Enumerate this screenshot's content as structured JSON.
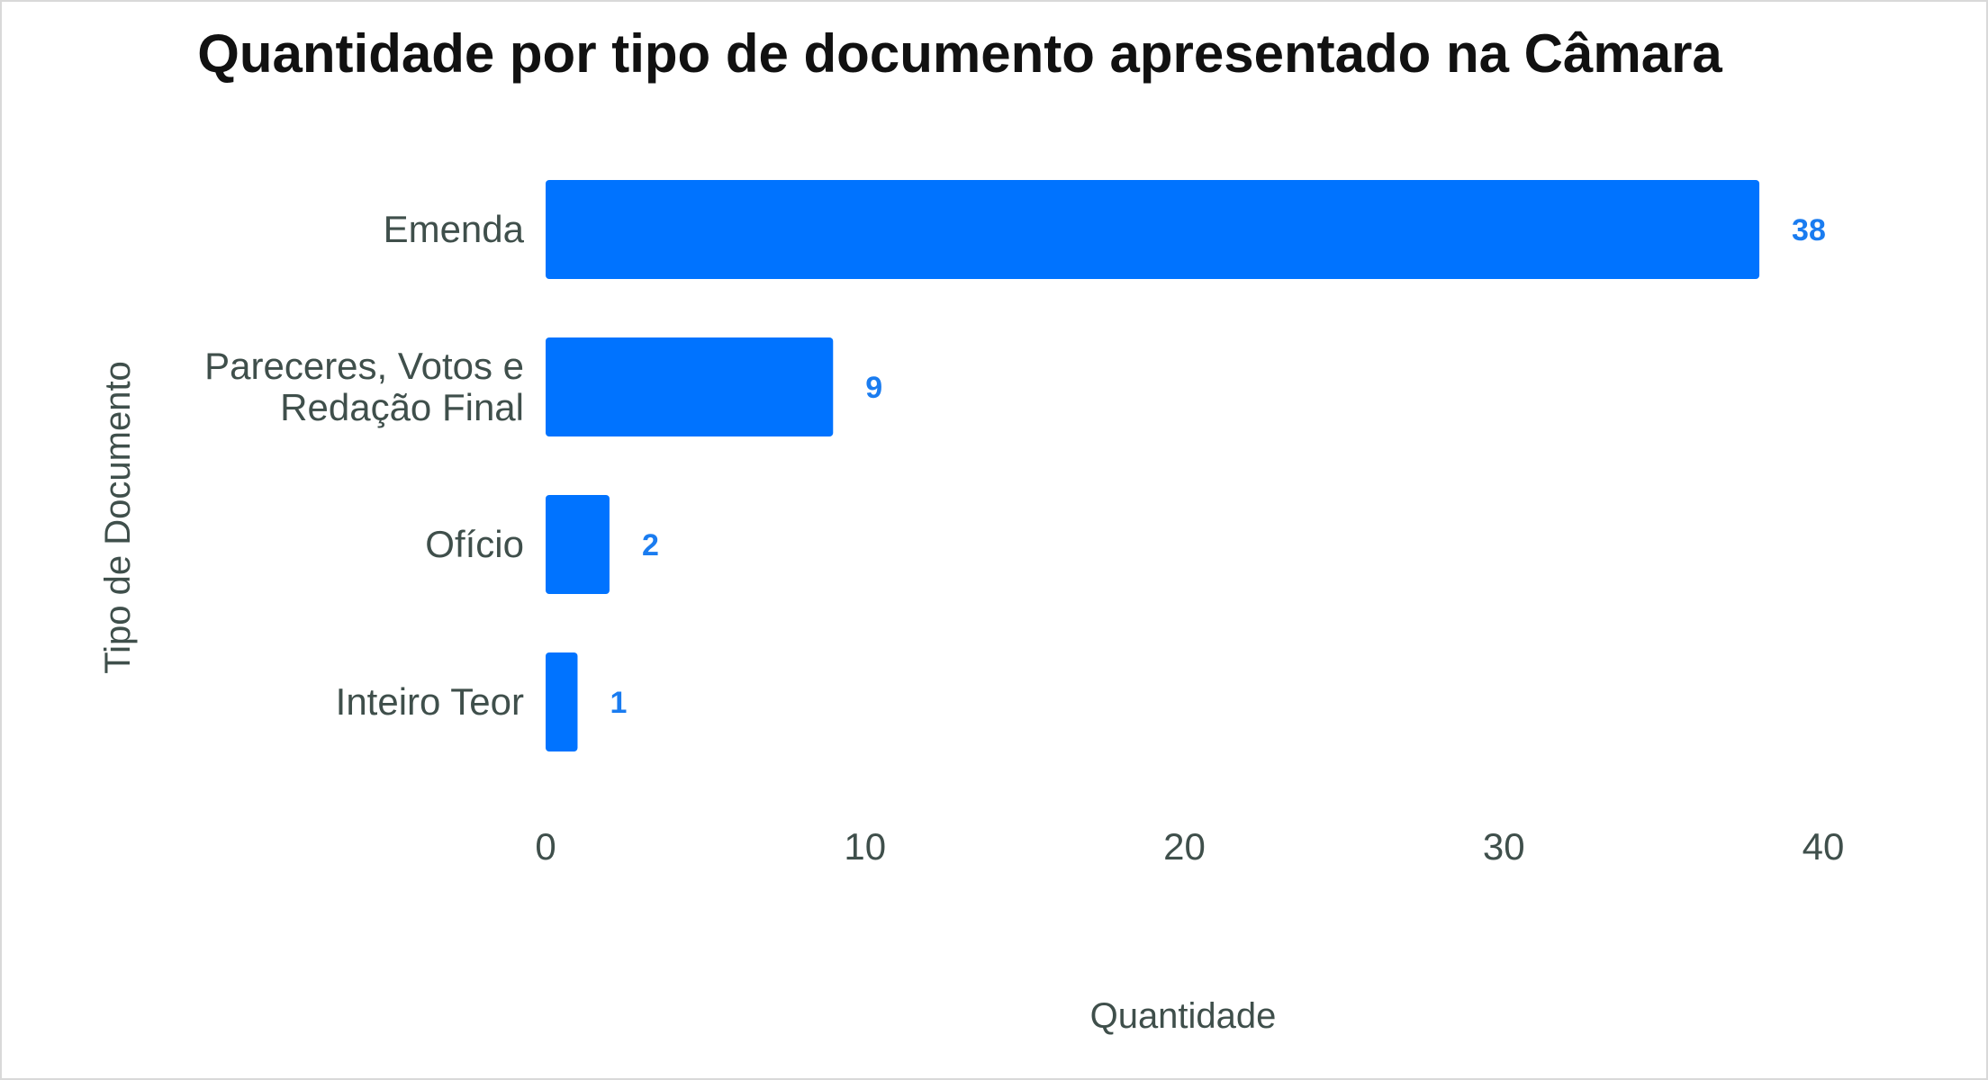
{
  "chart_data": {
    "type": "bar",
    "orientation": "horizontal",
    "title": "Quantidade por tipo de documento apresentado na Câmara",
    "xlabel": "Quantidade",
    "ylabel": "Tipo de Documento",
    "categories": [
      [
        "Emenda"
      ],
      [
        "Pareceres, Votos e",
        "Redação Final"
      ],
      [
        "Ofício"
      ],
      [
        "Inteiro Teor"
      ]
    ],
    "values": [
      38,
      9,
      2,
      1
    ],
    "data_labels": [
      "38",
      "9",
      "2",
      "1"
    ],
    "xlim": [
      0,
      40
    ],
    "xticks": [
      0,
      10,
      20,
      30,
      40
    ],
    "grid": false,
    "legend": "none",
    "bar_color": "#0073ff",
    "label_color": "#1a7cf0"
  }
}
